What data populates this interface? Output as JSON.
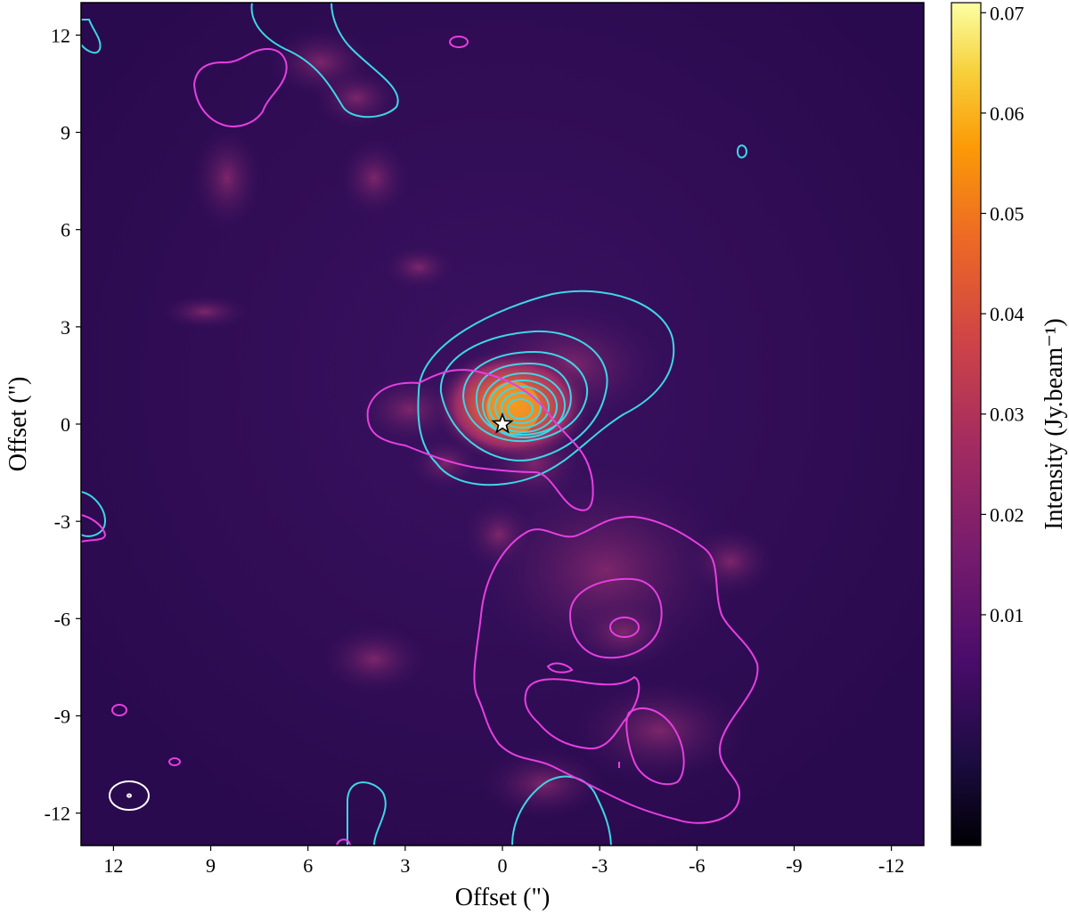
{
  "chart_data": {
    "type": "heatmap",
    "xlabel": "Offset (\")",
    "ylabel": "Offset (\")",
    "xlim": [
      13,
      -13
    ],
    "ylim": [
      -13,
      13
    ],
    "x_ticks": [
      12,
      9,
      6,
      3,
      0,
      -3,
      -6,
      -9,
      -12
    ],
    "x_tick_labels": [
      "12",
      "9",
      "6",
      "3",
      "0",
      "-3",
      "-6",
      "-9",
      "-12"
    ],
    "y_ticks": [
      12,
      9,
      6,
      3,
      0,
      -3,
      -6,
      -9,
      -12
    ],
    "y_tick_labels": [
      "12",
      "9",
      "6",
      "3",
      "0",
      "-3",
      "-6",
      "-9",
      "-12"
    ],
    "colorbar": {
      "label": "Intensity (Jy.beam⁻¹)",
      "range": [
        -0.013,
        0.071
      ],
      "ticks": [
        0.01,
        0.02,
        0.03,
        0.04,
        0.05,
        0.06,
        0.07
      ],
      "tick_labels": [
        "0.01",
        "0.02",
        "0.03",
        "0.04",
        "0.05",
        "0.06",
        "0.07"
      ],
      "colormap": "inferno"
    },
    "source_marker": {
      "symbol": "star",
      "x": 0,
      "y": 0
    },
    "peak_emission": {
      "x": -0.3,
      "y": 0.4
    },
    "contour_colors": {
      "cyan": "#3ed6e6",
      "magenta": "#e63fe0",
      "beam": "#ffffff"
    },
    "contour_sets": [
      {
        "color": "cyan",
        "levels_shown": 9,
        "center": [
          -0.2,
          0.3
        ]
      },
      {
        "color": "magenta",
        "levels_shown": 2,
        "regions": [
          "central",
          "south",
          "north-east"
        ]
      }
    ],
    "beam_ellipse": {
      "x": 11.5,
      "y": -11.5
    },
    "grid": false
  }
}
